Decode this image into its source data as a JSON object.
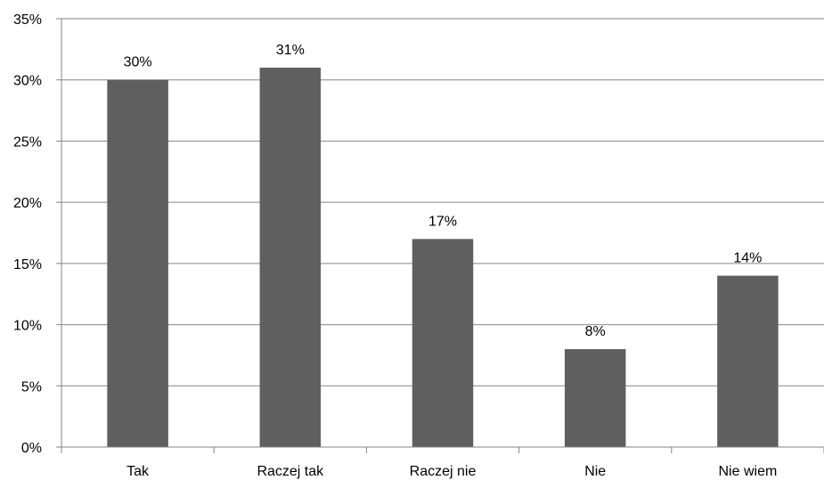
{
  "chart_data": {
    "type": "bar",
    "categories": [
      "Tak",
      "Raczej tak",
      "Raczej nie",
      "Nie",
      "Nie wiem"
    ],
    "values": [
      30,
      31,
      17,
      8,
      14
    ],
    "data_labels": [
      "30%",
      "31%",
      "17%",
      "8%",
      "14%"
    ],
    "ylim": [
      0,
      35
    ],
    "y_ticks": [
      0,
      5,
      10,
      15,
      20,
      25,
      30,
      35
    ],
    "y_tick_labels": [
      "0%",
      "5%",
      "10%",
      "15%",
      "20%",
      "25%",
      "30%",
      "35%"
    ],
    "title": "",
    "xlabel": "",
    "ylabel": "",
    "grid": true,
    "legend": "none",
    "colors": {
      "bar": "#5f5f5f",
      "grid": "#868686",
      "axis": "#868686",
      "text": "#000000"
    }
  }
}
